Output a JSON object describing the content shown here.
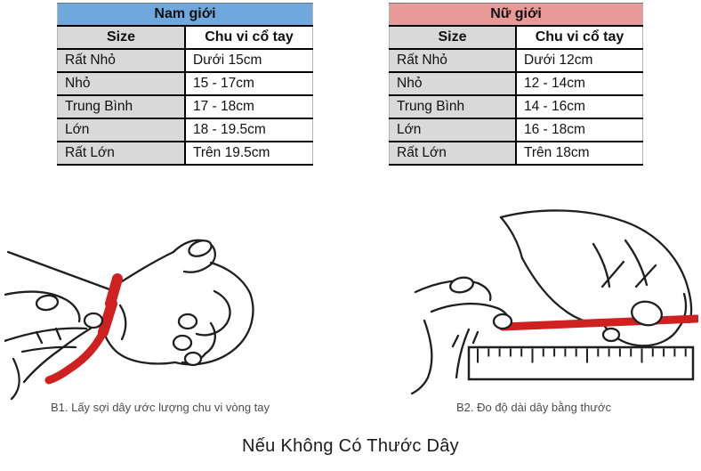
{
  "page": {
    "bottom_title": "Nếu Không Có Thước Dây"
  },
  "colors": {
    "men_header_bg": "#6fa8dc",
    "women_header_bg": "#ea9999",
    "size_column_bg": "#d9d9d9",
    "string_red": "#d02121"
  },
  "tables": {
    "columns": [
      "Size",
      "Chu vi cổ tay"
    ],
    "men": {
      "title": "Nam giới",
      "rows": [
        {
          "size": "Rất Nhỏ",
          "range": "Dưới 15cm"
        },
        {
          "size": "Nhỏ",
          "range": "15 - 17cm"
        },
        {
          "size": "Trung Bình",
          "range": "17 - 18cm"
        },
        {
          "size": "Lớn",
          "range": "18 - 19.5cm"
        },
        {
          "size": "Rất Lớn",
          "range": "Trên 19.5cm"
        }
      ]
    },
    "women": {
      "title": "Nữ giới",
      "rows": [
        {
          "size": "Rất Nhỏ",
          "range": "Dưới 12cm"
        },
        {
          "size": "Nhỏ",
          "range": "12 - 14cm"
        },
        {
          "size": "Trung Bình",
          "range": "14 - 16cm"
        },
        {
          "size": "Lớn",
          "range": "16 - 18cm"
        },
        {
          "size": "Rất Lớn",
          "range": "Trên 18cm"
        }
      ]
    }
  },
  "steps": {
    "b1_caption": "B1. Lấy sợi dây ước lượng chu vi vòng tay",
    "b2_caption": "B2. Đo độ dài dây bằng thước"
  }
}
